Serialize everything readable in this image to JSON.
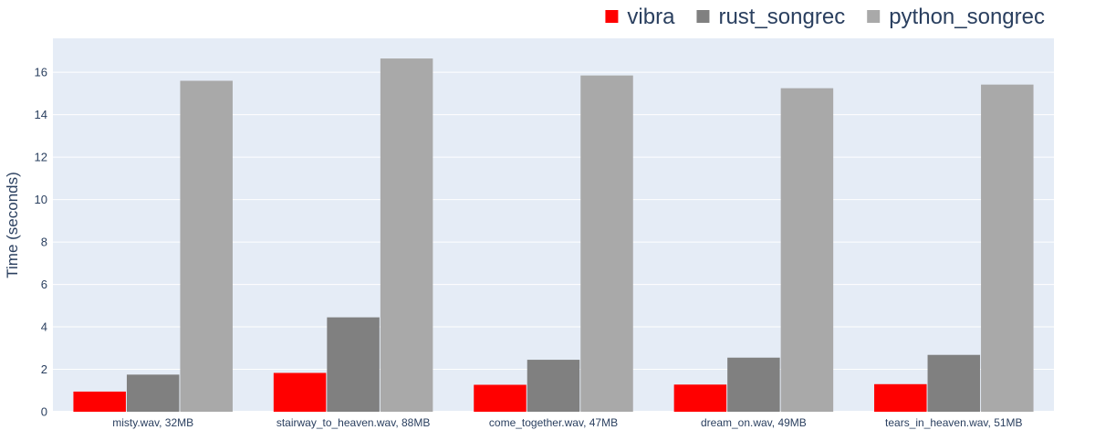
{
  "chart_data": {
    "type": "bar",
    "categories": [
      "misty.wav, 32MB",
      "stairway_to_heaven.wav, 88MB",
      "come_together.wav, 47MB",
      "dream_on.wav, 49MB",
      "tears_in_heaven.wav, 51MB"
    ],
    "series": [
      {
        "name": "vibra",
        "color": "#ff0000",
        "values": [
          0.95,
          1.83,
          1.27,
          1.28,
          1.3
        ]
      },
      {
        "name": "rust_songrec",
        "color": "#808080",
        "values": [
          1.75,
          4.45,
          2.45,
          2.55,
          2.68
        ]
      },
      {
        "name": "python_songrec",
        "color": "#a9a9a9",
        "values": [
          15.6,
          16.65,
          15.85,
          15.25,
          15.42
        ]
      }
    ],
    "title": "",
    "xlabel": "",
    "ylabel": "Time (seconds)",
    "ylim": [
      0,
      17.6
    ],
    "yticks": [
      0,
      2,
      4,
      6,
      8,
      10,
      12,
      14,
      16
    ],
    "grid": true,
    "legend_position": "top-right",
    "plot_background": "#e5ecf6"
  }
}
